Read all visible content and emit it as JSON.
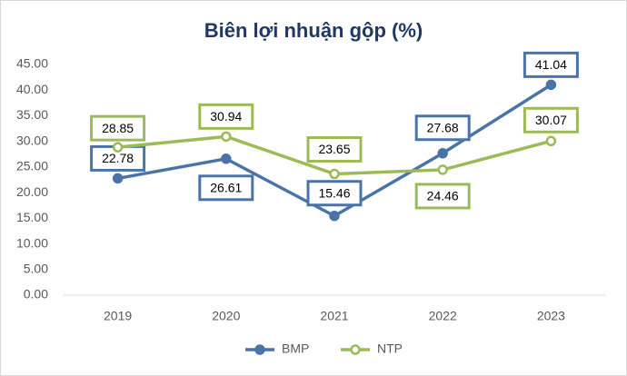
{
  "chart_data": {
    "type": "line",
    "title": "Biên lợi nhuận gộp (%)",
    "categories": [
      "2019",
      "2020",
      "2021",
      "2022",
      "2023"
    ],
    "series": [
      {
        "name": "BMP",
        "color": "#4a74a8",
        "values": [
          22.78,
          26.61,
          15.46,
          27.68,
          41.04
        ]
      },
      {
        "name": "NTP",
        "color": "#9bbb59",
        "values": [
          28.85,
          30.94,
          23.65,
          24.46,
          30.07
        ]
      }
    ],
    "ylim": [
      0,
      45
    ],
    "yticks": [
      {
        "value": 0,
        "label": "0.00"
      },
      {
        "value": 5,
        "label": "5.00"
      },
      {
        "value": 10,
        "label": "10.00"
      },
      {
        "value": 15,
        "label": "15.00"
      },
      {
        "value": 20,
        "label": "20.00"
      },
      {
        "value": 25,
        "label": "25.00"
      },
      {
        "value": 30,
        "label": "30.00"
      },
      {
        "value": 35,
        "label": "35.00"
      },
      {
        "value": 40,
        "label": "40.00"
      },
      {
        "value": 45,
        "label": "45.00"
      }
    ],
    "grid": false,
    "legend": "bottom"
  }
}
